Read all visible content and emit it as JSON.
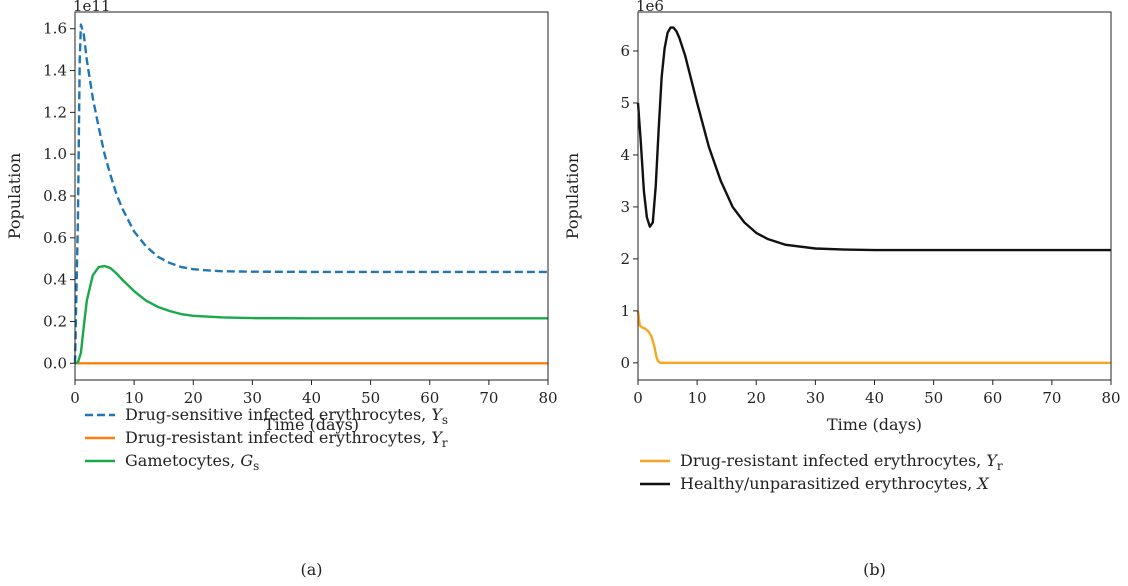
{
  "chart_data": [
    {
      "type": "line",
      "panel_label": "(a)",
      "offset_text": "1e11",
      "xlabel": "Time (days)",
      "ylabel": "Population",
      "xlim": [
        0,
        80
      ],
      "ylim": [
        -0.08,
        1.68
      ],
      "x_ticks": [
        0,
        10,
        20,
        30,
        40,
        50,
        60,
        70,
        80
      ],
      "x_tick_labels": [
        "0",
        "10",
        "20",
        "30",
        "40",
        "50",
        "60",
        "70",
        "80"
      ],
      "y_ticks": [
        0.0,
        0.2,
        0.4,
        0.6,
        0.8,
        1.0,
        1.2,
        1.4,
        1.6
      ],
      "y_tick_labels": [
        "0.0",
        "0.2",
        "0.4",
        "0.6",
        "0.8",
        "1.0",
        "1.2",
        "1.4",
        "1.6"
      ],
      "grid": false,
      "legend_position": "below",
      "series": [
        {
          "name": "Drug-sensitive infected erythrocytes, Ys",
          "legend_main": "Drug-sensitive infected erythrocytes, ",
          "legend_var": "Y",
          "legend_sub": "s",
          "color": "#1f77b4",
          "dashed": true,
          "x": [
            0,
            0.5,
            0.8,
            1,
            1.5,
            2,
            3,
            4,
            5,
            6,
            7,
            8,
            10,
            12,
            14,
            16,
            18,
            20,
            22,
            25,
            30,
            40,
            50,
            60,
            70,
            80
          ],
          "y": [
            0.0,
            0.7,
            1.45,
            1.62,
            1.57,
            1.45,
            1.27,
            1.13,
            1.0,
            0.9,
            0.81,
            0.74,
            0.63,
            0.56,
            0.51,
            0.48,
            0.46,
            0.45,
            0.445,
            0.44,
            0.438,
            0.437,
            0.437,
            0.437,
            0.437,
            0.437
          ]
        },
        {
          "name": "Drug-resistant infected erythrocytes, Yr",
          "legend_main": "Drug-resistant infected erythrocytes, ",
          "legend_var": "Y",
          "legend_sub": "r",
          "color": "#ff7f0e",
          "dashed": false,
          "x": [
            0,
            80
          ],
          "y": [
            0.0,
            0.0
          ]
        },
        {
          "name": "Gametocytes, Gs",
          "legend_main": "Gametocytes, ",
          "legend_var": "G",
          "legend_sub": "s",
          "color": "#1aa84a",
          "dashed": false,
          "x": [
            0,
            0.5,
            1,
            1.5,
            2,
            3,
            4,
            5,
            6,
            7,
            8,
            10,
            12,
            14,
            16,
            18,
            20,
            25,
            30,
            40,
            50,
            60,
            70,
            80
          ],
          "y": [
            0.0,
            0.005,
            0.05,
            0.18,
            0.3,
            0.42,
            0.46,
            0.465,
            0.455,
            0.43,
            0.4,
            0.345,
            0.3,
            0.27,
            0.25,
            0.235,
            0.227,
            0.219,
            0.216,
            0.215,
            0.215,
            0.215,
            0.215,
            0.215
          ]
        }
      ]
    },
    {
      "type": "line",
      "panel_label": "(b)",
      "offset_text": "1e6",
      "xlabel": "Time (days)",
      "ylabel": "Population",
      "xlim": [
        0,
        80
      ],
      "ylim": [
        -0.33,
        6.75
      ],
      "x_ticks": [
        0,
        10,
        20,
        30,
        40,
        50,
        60,
        70,
        80
      ],
      "x_tick_labels": [
        "0",
        "10",
        "20",
        "30",
        "40",
        "50",
        "60",
        "70",
        "80"
      ],
      "y_ticks": [
        0,
        1,
        2,
        3,
        4,
        5,
        6
      ],
      "y_tick_labels": [
        "0",
        "1",
        "2",
        "3",
        "4",
        "5",
        "6"
      ],
      "grid": false,
      "legend_position": "below",
      "series": [
        {
          "name": "Drug-resistant infected erythrocytes, Yr",
          "legend_main": "Drug-resistant infected erythrocytes, ",
          "legend_var": "Y",
          "legend_sub": "r",
          "color": "#f5a623",
          "dashed": false,
          "x": [
            0,
            0.3,
            0.7,
            1.2,
            1.8,
            2.3,
            2.8,
            3.1,
            3.4,
            3.8,
            5,
            80
          ],
          "y": [
            1.0,
            0.72,
            0.68,
            0.66,
            0.6,
            0.5,
            0.3,
            0.12,
            0.03,
            0.0,
            0.0,
            0.0
          ]
        },
        {
          "name": "Healthy/unparasitized erythrocytes, X",
          "legend_main": "Healthy/unparasitized erythrocytes, ",
          "legend_var": "X",
          "legend_sub": "",
          "color": "#111111",
          "dashed": false,
          "x": [
            0,
            0.5,
            1,
            1.5,
            2,
            2.5,
            3,
            3.5,
            4,
            4.5,
            5,
            5.5,
            6,
            6.5,
            7,
            8,
            9,
            10,
            12,
            14,
            16,
            18,
            20,
            22,
            25,
            30,
            35,
            40,
            50,
            60,
            70,
            80
          ],
          "y": [
            5.0,
            4.2,
            3.3,
            2.8,
            2.62,
            2.7,
            3.4,
            4.5,
            5.5,
            6.05,
            6.35,
            6.45,
            6.45,
            6.38,
            6.25,
            5.9,
            5.45,
            5.0,
            4.15,
            3.5,
            3.0,
            2.7,
            2.5,
            2.38,
            2.27,
            2.2,
            2.18,
            2.17,
            2.17,
            2.17,
            2.17,
            2.17
          ]
        }
      ]
    }
  ]
}
